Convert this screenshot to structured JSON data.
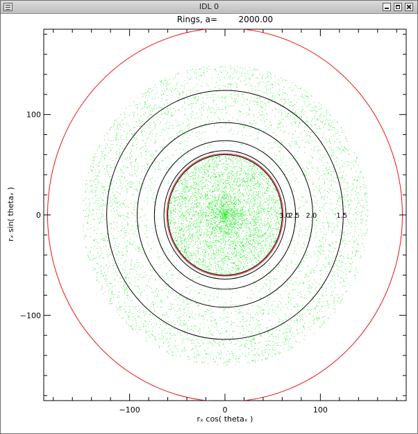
{
  "window": {
    "title": "IDL 0"
  },
  "colors": {
    "scatter": "#33ee33",
    "outer_ring": "#ee1111",
    "inner_ring": "#ee1111",
    "ring_lines": "#000000"
  },
  "chart_data": {
    "type": "scatter",
    "title": "Rings, a=        2000.00",
    "xlabel": "rₓ cos( thetaₓ )",
    "ylabel": "rₓ sin( thetaₓ )",
    "xlim": [
      -190,
      190
    ],
    "ylim": [
      -185,
      185
    ],
    "xticks": [
      -100,
      0,
      100
    ],
    "yticks": [
      -100,
      0,
      100
    ],
    "xtick_labels": [
      "−100",
      "0",
      "100"
    ],
    "ytick_labels": [
      "−100",
      "0",
      "100"
    ],
    "grid": false,
    "outer_circle_radius": 186,
    "inner_red_circle_radius": 61,
    "black_circles": [
      {
        "radius": 60,
        "label": ""
      },
      {
        "radius": 64,
        "label": "3.0"
      },
      {
        "radius": 74,
        "label": "2.5"
      },
      {
        "radius": 92,
        "label": "2.0"
      },
      {
        "radius": 124,
        "label": "1.5"
      }
    ],
    "scatter_bands": [
      {
        "r_min": 0,
        "r_max": 60
      },
      {
        "r_min": 63,
        "r_max": 150
      }
    ]
  }
}
